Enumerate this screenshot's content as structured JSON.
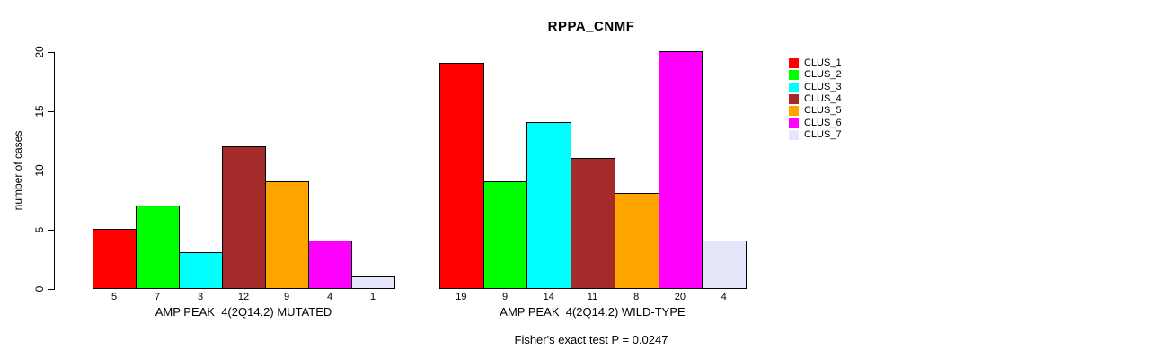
{
  "chart_data": {
    "type": "bar",
    "title": "RPPA_CNMF",
    "ylabel": "number of cases",
    "ylim": [
      0,
      20
    ],
    "yticks": [
      0,
      5,
      10,
      15,
      20
    ],
    "grid": false,
    "legend": {
      "position": "right",
      "entries": [
        {
          "label": "CLUS_1",
          "color": "#FF0000"
        },
        {
          "label": "CLUS_2",
          "color": "#00FF00"
        },
        {
          "label": "CLUS_3",
          "color": "#00FFFF"
        },
        {
          "label": "CLUS_4",
          "color": "#A52A2A"
        },
        {
          "label": "CLUS_5",
          "color": "#FFA500"
        },
        {
          "label": "CLUS_6",
          "color": "#FF00FF"
        },
        {
          "label": "CLUS_7",
          "color": "#E6E6FA"
        }
      ]
    },
    "groups": [
      {
        "label": "AMP PEAK  4(2Q14.2) MUTATED",
        "categories": [
          "CLUS_1",
          "CLUS_2",
          "CLUS_3",
          "CLUS_4",
          "CLUS_5",
          "CLUS_6",
          "CLUS_7"
        ],
        "values": [
          5,
          7,
          3,
          12,
          9,
          4,
          1
        ]
      },
      {
        "label": "AMP PEAK  4(2Q14.2) WILD-TYPE",
        "categories": [
          "CLUS_1",
          "CLUS_2",
          "CLUS_3",
          "CLUS_4",
          "CLUS_5",
          "CLUS_6",
          "CLUS_7"
        ],
        "values": [
          19,
          9,
          14,
          11,
          8,
          20,
          4
        ]
      }
    ],
    "footer": "Fisher's exact test P = 0.0247"
  }
}
